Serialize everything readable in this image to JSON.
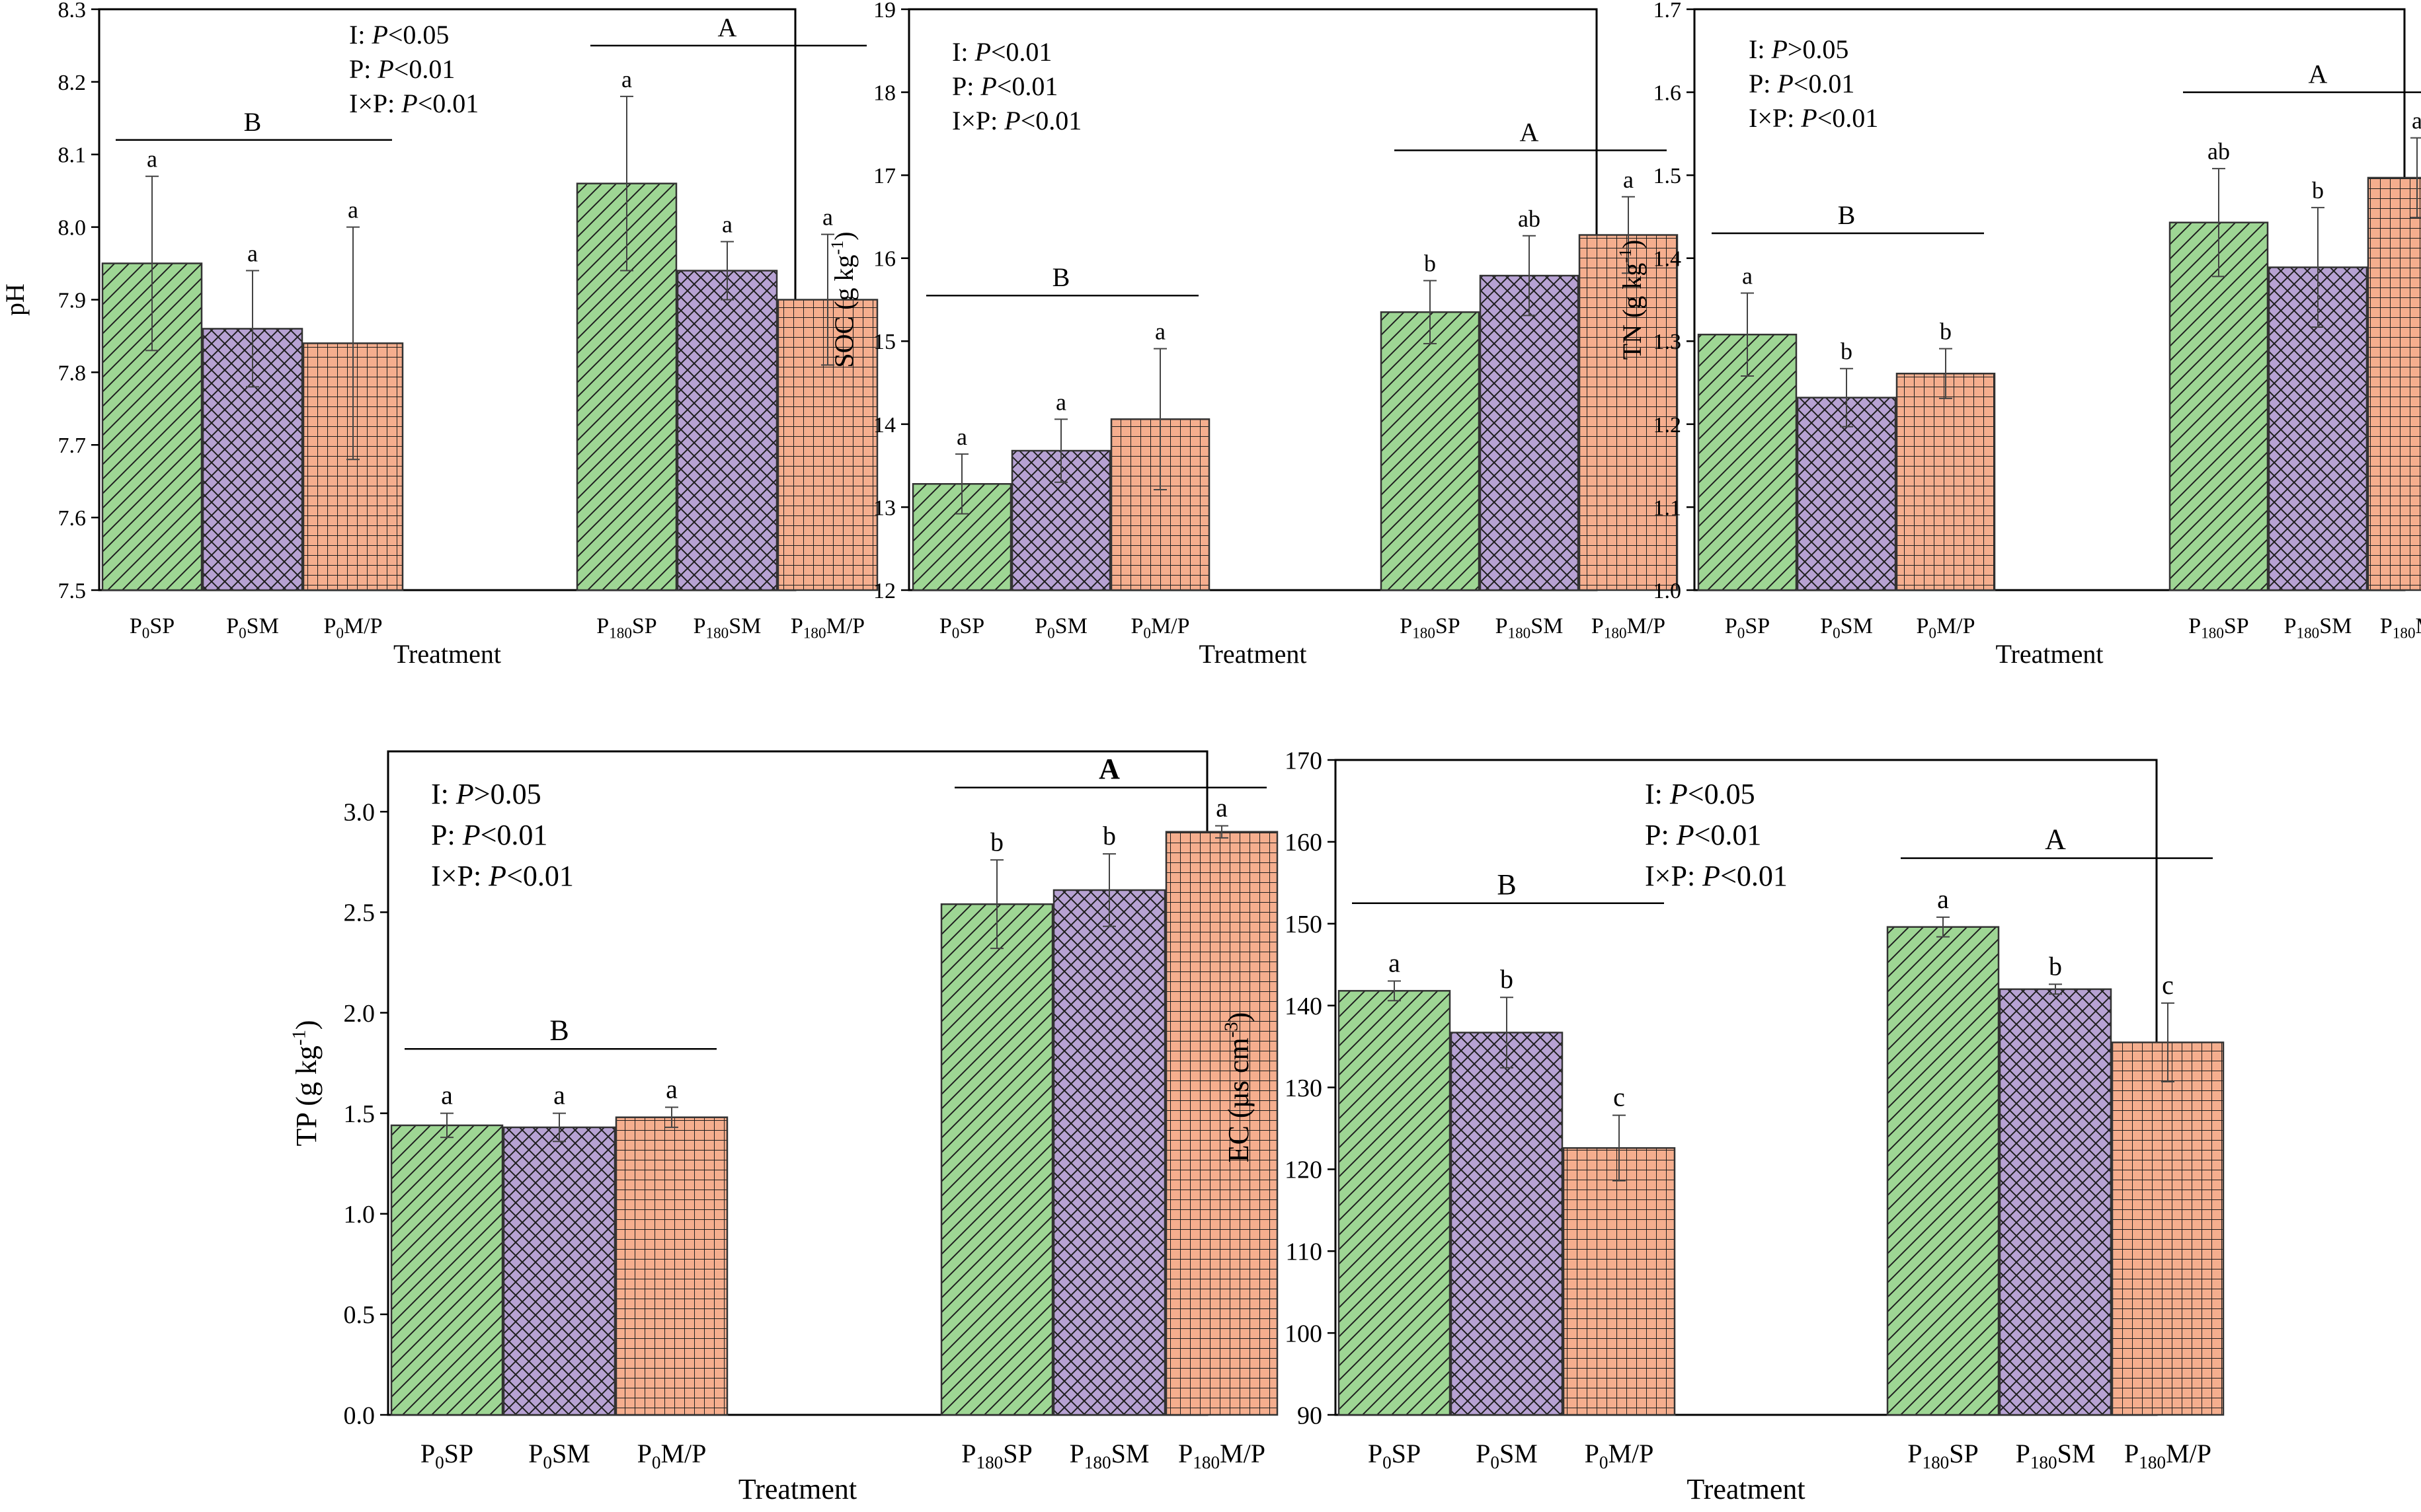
{
  "colors": {
    "sp": "#9ED694",
    "sm": "#B7A2D3",
    "mp": "#F5AE8E",
    "axis": "#000000",
    "hatch": "#1f1f1f"
  },
  "chart_data": [
    {
      "id": "ph",
      "type": "bar",
      "title": "",
      "xlabel": "Treatment",
      "ylabel": [
        {
          "t": "pH"
        }
      ],
      "ylim": [
        7.5,
        8.3
      ],
      "yticks": [
        7.5,
        7.6,
        7.7,
        7.8,
        7.9,
        8.0,
        8.1,
        8.2,
        8.3
      ],
      "ytick_labels": [
        "7.5",
        "7.6",
        "7.7",
        "7.8",
        "7.9",
        "8.0",
        "8.1",
        "8.2",
        "8.3"
      ],
      "categories": [
        {
          "base": "P",
          "sub": "0",
          "rest": "SP"
        },
        {
          "base": "P",
          "sub": "0",
          "rest": "SM"
        },
        {
          "base": "P",
          "sub": "0",
          "rest": "M/P"
        },
        {
          "base": "P",
          "sub": "180",
          "rest": "SP"
        },
        {
          "base": "P",
          "sub": "180",
          "rest": "SM"
        },
        {
          "base": "P",
          "sub": "180",
          "rest": "M/P"
        }
      ],
      "values": [
        7.95,
        7.86,
        7.84,
        8.06,
        7.94,
        7.9
      ],
      "errors": [
        0.12,
        0.08,
        0.16,
        0.12,
        0.04,
        0.09
      ],
      "letters": [
        "a",
        "a",
        "a",
        "a",
        "a",
        "a"
      ],
      "groups": [
        {
          "label": "B",
          "level": 8.12,
          "bold": false
        },
        {
          "label": "A",
          "level": 8.25,
          "bold": false
        }
      ],
      "stats": [
        {
          "prefix": "I: ",
          "italic": "P",
          "suffix": "<0.05"
        },
        {
          "prefix": "P: ",
          "italic": "P",
          "suffix": "<0.01"
        },
        {
          "prefix": "I×P: ",
          "italic": "P",
          "suffix": "<0.01"
        }
      ]
    },
    {
      "id": "soc",
      "type": "bar",
      "title": "",
      "xlabel": "Treatment",
      "ylabel": [
        {
          "t": "SOC (g kg"
        },
        {
          "t": "-1",
          "sup": true
        },
        {
          "t": ")"
        }
      ],
      "ylim": [
        12,
        19
      ],
      "yticks": [
        12,
        13,
        14,
        15,
        16,
        17,
        18,
        19
      ],
      "ytick_labels": [
        "12",
        "13",
        "14",
        "15",
        "16",
        "17",
        "18",
        "19"
      ],
      "categories": [
        {
          "base": "P",
          "sub": "0",
          "rest": "SP"
        },
        {
          "base": "P",
          "sub": "0",
          "rest": "SM"
        },
        {
          "base": "P",
          "sub": "0",
          "rest": "M/P"
        },
        {
          "base": "P",
          "sub": "180",
          "rest": "SP"
        },
        {
          "base": "P",
          "sub": "180",
          "rest": "SM"
        },
        {
          "base": "P",
          "sub": "180",
          "rest": "M/P"
        }
      ],
      "values": [
        13.28,
        13.68,
        14.06,
        15.35,
        15.79,
        16.28
      ],
      "errors": [
        0.36,
        0.38,
        0.85,
        0.38,
        0.48,
        0.46
      ],
      "letters": [
        "a",
        "a",
        "a",
        "b",
        "ab",
        "a"
      ],
      "groups": [
        {
          "label": "B",
          "level": 15.55,
          "bold": false
        },
        {
          "label": "A",
          "level": 17.3,
          "bold": false
        }
      ],
      "stats": [
        {
          "prefix": "I: ",
          "italic": "P",
          "suffix": "<0.01"
        },
        {
          "prefix": "P: ",
          "italic": "P",
          "suffix": "<0.01"
        },
        {
          "prefix": "I×P: ",
          "italic": "P",
          "suffix": "<0.01"
        }
      ]
    },
    {
      "id": "tn",
      "type": "bar",
      "title": "",
      "xlabel": "Treatment",
      "ylabel": [
        {
          "t": "TN (g kg"
        },
        {
          "t": "-1",
          "sup": true
        },
        {
          "t": ")"
        }
      ],
      "ylim": [
        1.0,
        1.7
      ],
      "yticks": [
        1.0,
        1.1,
        1.2,
        1.3,
        1.4,
        1.5,
        1.6,
        1.7
      ],
      "ytick_labels": [
        "1.0",
        "1.1",
        "1.2",
        "1.3",
        "1.4",
        "1.5",
        "1.6",
        "1.7"
      ],
      "categories": [
        {
          "base": "P",
          "sub": "0",
          "rest": "SP"
        },
        {
          "base": "P",
          "sub": "0",
          "rest": "SM"
        },
        {
          "base": "P",
          "sub": "0",
          "rest": "M/P"
        },
        {
          "base": "P",
          "sub": "180",
          "rest": "SP"
        },
        {
          "base": "P",
          "sub": "180",
          "rest": "SM"
        },
        {
          "base": "P",
          "sub": "180",
          "rest": "M/P"
        }
      ],
      "values": [
        1.308,
        1.232,
        1.261,
        1.443,
        1.389,
        1.497
      ],
      "errors": [
        0.05,
        0.035,
        0.03,
        0.065,
        0.072,
        0.048
      ],
      "letters": [
        "a",
        "b",
        "b",
        "ab",
        "b",
        "a"
      ],
      "groups": [
        {
          "label": "B",
          "level": 1.43,
          "bold": false
        },
        {
          "label": "A",
          "level": 1.6,
          "bold": false
        }
      ],
      "stats": [
        {
          "prefix": "I: ",
          "italic": "P",
          "suffix": ">0.05"
        },
        {
          "prefix": "P: ",
          "italic": "P",
          "suffix": "<0.01"
        },
        {
          "prefix": "I×P: ",
          "italic": "P",
          "suffix": "<0.01"
        }
      ]
    },
    {
      "id": "tp",
      "type": "bar",
      "title": "",
      "xlabel": "Treatment",
      "ylabel": [
        {
          "t": "TP (g kg"
        },
        {
          "t": "-1",
          "sup": true
        },
        {
          "t": ")"
        }
      ],
      "ylim": [
        0,
        3.3
      ],
      "yticks": [
        0,
        0.5,
        1.0,
        1.5,
        2.0,
        2.5,
        3.0
      ],
      "ytick_labels": [
        "0.0",
        "0.5",
        "1.0",
        "1.5",
        "2.0",
        "2.5",
        "3.0"
      ],
      "categories": [
        {
          "base": "P",
          "sub": "0",
          "rest": "SP"
        },
        {
          "base": "P",
          "sub": "0",
          "rest": "SM"
        },
        {
          "base": "P",
          "sub": "0",
          "rest": "M/P"
        },
        {
          "base": "P",
          "sub": "180",
          "rest": "SP"
        },
        {
          "base": "P",
          "sub": "180",
          "rest": "SM"
        },
        {
          "base": "P",
          "sub": "180",
          "rest": "M/P"
        }
      ],
      "values": [
        1.44,
        1.43,
        1.48,
        2.54,
        2.61,
        2.9
      ],
      "errors": [
        0.06,
        0.07,
        0.05,
        0.22,
        0.18,
        0.03
      ],
      "letters": [
        "a",
        "a",
        "a",
        "b",
        "b",
        "a"
      ],
      "groups": [
        {
          "label": "B",
          "level": 1.82,
          "bold": false
        },
        {
          "label": "A",
          "level": 3.12,
          "bold": true
        }
      ],
      "stats": [
        {
          "prefix": "I: ",
          "italic": "P",
          "suffix": ">0.05"
        },
        {
          "prefix": "P: ",
          "italic": "P",
          "suffix": "<0.01"
        },
        {
          "prefix": "I×P: ",
          "italic": "P",
          "suffix": "<0.01"
        }
      ]
    },
    {
      "id": "ec",
      "type": "bar",
      "title": "",
      "xlabel": "Treatment",
      "ylabel": [
        {
          "t": "EC (µs cm"
        },
        {
          "t": "-3",
          "sup": true
        },
        {
          "t": ")"
        }
      ],
      "ylim": [
        90,
        170
      ],
      "yticks": [
        90,
        100,
        110,
        120,
        130,
        140,
        150,
        160,
        170
      ],
      "ytick_labels": [
        "90",
        "100",
        "110",
        "120",
        "130",
        "140",
        "150",
        "160",
        "170"
      ],
      "categories": [
        {
          "base": "P",
          "sub": "0",
          "rest": "SP"
        },
        {
          "base": "P",
          "sub": "0",
          "rest": "SM"
        },
        {
          "base": "P",
          "sub": "0",
          "rest": "M/P"
        },
        {
          "base": "P",
          "sub": "180",
          "rest": "SP"
        },
        {
          "base": "P",
          "sub": "180",
          "rest": "SM"
        },
        {
          "base": "P",
          "sub": "180",
          "rest": "M/P"
        }
      ],
      "values": [
        141.8,
        136.7,
        122.6,
        149.6,
        142.0,
        135.5
      ],
      "errors": [
        1.2,
        4.3,
        4.0,
        1.2,
        0.6,
        4.8
      ],
      "letters": [
        "a",
        "b",
        "c",
        "a",
        "b",
        "c"
      ],
      "groups": [
        {
          "label": "B",
          "level": 152.5,
          "bold": false
        },
        {
          "label": "A",
          "level": 158.0,
          "bold": false
        }
      ],
      "stats": [
        {
          "prefix": "I: ",
          "italic": "P",
          "suffix": "<0.05"
        },
        {
          "prefix": "P: ",
          "italic": "P",
          "suffix": "<0.01"
        },
        {
          "prefix": "I×P: ",
          "italic": "P",
          "suffix": "<0.01"
        }
      ]
    }
  ]
}
